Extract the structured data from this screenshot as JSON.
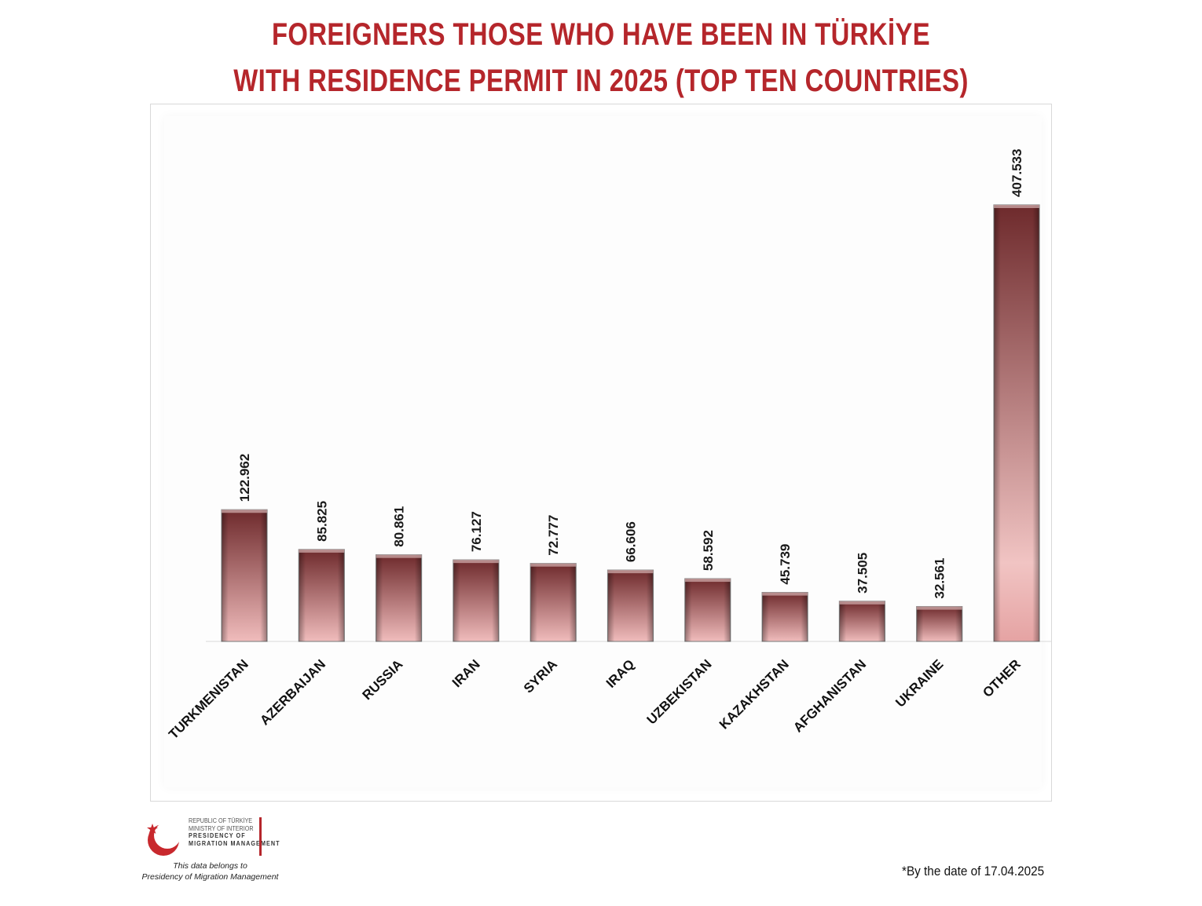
{
  "title": {
    "line1": "FOREIGNERS THOSE WHO HAVE BEEN IN TÜRKİYE",
    "line2": "WITH RESIDENCE PERMIT IN 2025 (TOP TEN COUNTRIES)"
  },
  "chart_data": {
    "type": "bar",
    "title": "FOREIGNERS THOSE WHO HAVE BEEN IN TÜRKİYE WITH RESIDENCE PERMIT IN 2025 (TOP TEN COUNTRIES)",
    "xlabel": "",
    "ylabel": "",
    "ylim": [
      0,
      450000
    ],
    "grid": false,
    "legend": "none",
    "categories": [
      "TURKMENISTAN",
      "AZERBAIJAN",
      "RUSSIA",
      "IRAN",
      "SYRIA",
      "IRAQ",
      "UZBEKISTAN",
      "KAZAKHSTAN",
      "AFGHANISTAN",
      "UKRAINE",
      "OTHER"
    ],
    "values": [
      122962,
      85825,
      80861,
      76127,
      72777,
      66606,
      58592,
      45739,
      37505,
      32561,
      407533
    ],
    "value_labels": [
      "122.962",
      "85.825",
      "80.861",
      "76.127",
      "72.777",
      "66.606",
      "58.592",
      "45.739",
      "37.505",
      "32.561",
      "407.533"
    ],
    "bar_color_dark": "#6e2a2c",
    "bar_color_light": "#f0bcbc"
  },
  "logo": {
    "line1": "REPUBLIC OF TÜRKİYE",
    "line2": "MINISTRY OF INTERIOR",
    "line3": "PRESIDENCY OF",
    "line4": "MIGRATION MANAGEMENT",
    "icon": "crescent-star-icon",
    "accent": "#b5262b"
  },
  "source_note": {
    "line1": "This data belongs to",
    "line2": "Presidency of Migration Management"
  },
  "footnote": "*By the date of 17.04.2025"
}
